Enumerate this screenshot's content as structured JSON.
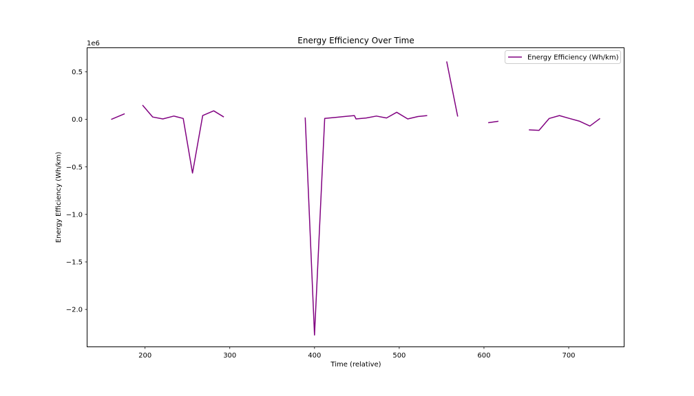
{
  "chart_data": {
    "type": "line",
    "title": "Energy Efficiency Over Time",
    "xlabel": "Time (relative)",
    "ylabel": "Energy Efficiency (Wh/km)",
    "y_offset_text": "1e6",
    "xlim": [
      132,
      765
    ],
    "ylim": [
      -2.39,
      0.75
    ],
    "x_ticks": [
      200,
      300,
      400,
      500,
      600,
      700
    ],
    "y_ticks": [
      0.5,
      0.0,
      -0.5,
      -1.0,
      -1.5,
      -2.0
    ],
    "x_tick_labels": [
      "200",
      "300",
      "400",
      "500",
      "600",
      "700"
    ],
    "y_tick_labels": [
      "0.5",
      "0.0",
      "−0.5",
      "−1.0",
      "−1.5",
      "−2.0"
    ],
    "grid": false,
    "legend_position": "upper right",
    "colors": {
      "series": "#800080"
    },
    "series": [
      {
        "name": "Energy Efficiency (Wh/km)",
        "segments": [
          [
            [
              160,
              0.0
            ],
            [
              176,
              0.06
            ]
          ],
          [
            [
              197,
              0.15
            ],
            [
              209,
              0.025
            ],
            [
              221,
              0.005
            ],
            [
              234,
              0.035
            ],
            [
              245,
              0.01
            ],
            [
              256,
              -0.565
            ],
            [
              268,
              0.04
            ],
            [
              281,
              0.09
            ],
            [
              293,
              0.025
            ]
          ],
          [
            [
              389,
              0.02
            ],
            [
              400,
              -2.27
            ],
            [
              412,
              0.01
            ],
            [
              424,
              0.02
            ],
            [
              435,
              0.03
            ],
            [
              447,
              0.04
            ],
            [
              449,
              0.005
            ],
            [
              461,
              0.015
            ],
            [
              473,
              0.035
            ],
            [
              485,
              0.015
            ],
            [
              497,
              0.075
            ],
            [
              510,
              0.005
            ],
            [
              522,
              0.03
            ],
            [
              533,
              0.04
            ]
          ],
          [
            [
              556,
              0.61
            ],
            [
              569,
              0.03
            ]
          ],
          [
            [
              605,
              -0.035
            ],
            [
              617,
              -0.02
            ]
          ],
          [
            [
              653,
              -0.11
            ],
            [
              665,
              -0.115
            ],
            [
              677,
              0.01
            ],
            [
              689,
              0.04
            ],
            [
              701,
              0.01
            ],
            [
              713,
              -0.02
            ],
            [
              725,
              -0.07
            ],
            [
              737,
              0.01
            ]
          ]
        ]
      }
    ]
  }
}
